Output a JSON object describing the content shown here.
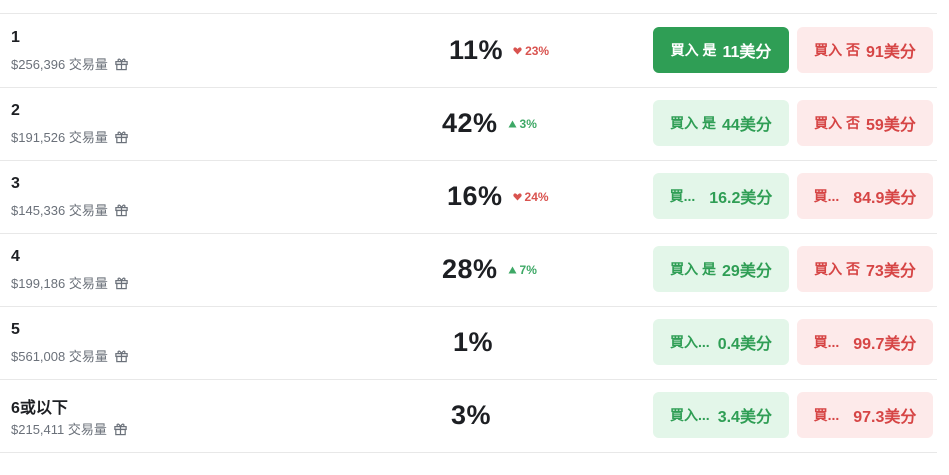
{
  "rows": [
    {
      "label": "1",
      "volume": "$256,396 交易量",
      "percent": "11%",
      "change": {
        "dir": "down",
        "value": "23%"
      },
      "yes": {
        "action": "買入 是",
        "price": "11美分",
        "active": true
      },
      "no": {
        "action": "買入 否",
        "price": "91美分"
      }
    },
    {
      "label": "2",
      "volume": "$191,526 交易量",
      "percent": "42%",
      "change": {
        "dir": "up",
        "value": "3%"
      },
      "yes": {
        "action": "買入 是",
        "price": "44美分",
        "active": false
      },
      "no": {
        "action": "買入 否",
        "price": "59美分"
      }
    },
    {
      "label": "3",
      "volume": "$145,336 交易量",
      "percent": "16%",
      "change": {
        "dir": "down",
        "value": "24%"
      },
      "yes": {
        "action": "買...",
        "price": "16.2美分",
        "active": false
      },
      "no": {
        "action": "買...",
        "price": "84.9美分"
      }
    },
    {
      "label": "4",
      "volume": "$199,186 交易量",
      "percent": "28%",
      "change": {
        "dir": "up",
        "value": "7%"
      },
      "yes": {
        "action": "買入 是",
        "price": "29美分",
        "active": false
      },
      "no": {
        "action": "買入 否",
        "price": "73美分"
      }
    },
    {
      "label": "5",
      "volume": "$561,008 交易量",
      "percent": "1%",
      "change": null,
      "yes": {
        "action": "買入...",
        "price": "0.4美分",
        "active": false
      },
      "no": {
        "action": "買...",
        "price": "99.7美分"
      }
    },
    {
      "label": "6或以下",
      "volume": "$215,411 交易量",
      "percent": "3%",
      "change": null,
      "yes": {
        "action": "買入...",
        "price": "3.4美分",
        "active": false
      },
      "no": {
        "action": "買...",
        "price": "97.3美分"
      }
    }
  ],
  "icons": {
    "gift": "gift-icon",
    "up": "triangle-up-icon",
    "down": "heart-down-icon"
  },
  "colors": {
    "yes": "#2f9e55",
    "yes_bg": "#e3f6e9",
    "no": "#d64545",
    "no_bg": "#fdeaea",
    "up": "#3ea866",
    "down": "#d9534f"
  }
}
